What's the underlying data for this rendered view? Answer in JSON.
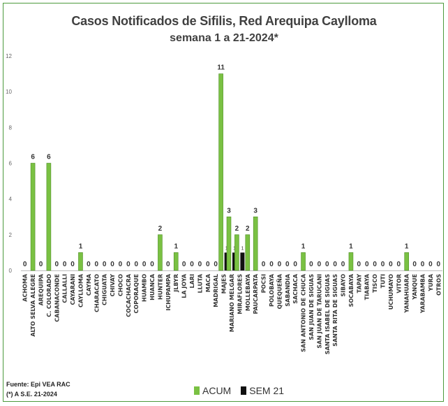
{
  "chart_data": {
    "type": "bar",
    "title": "Casos Notificados de Sifilis, Red Arequipa Caylloma",
    "subtitle": "semana 1 a 21-2024*",
    "ylim": [
      0,
      12
    ],
    "yticks": [
      0,
      2,
      4,
      6,
      8,
      10,
      12
    ],
    "grid": false,
    "legend_position": "bottom",
    "categories": [
      "ACHOMA",
      "ALTO SELVA ALEGRE",
      "AREQUIPA",
      "C. COLORADO",
      "CABANACONDE",
      "CALLALLI",
      "CAYARANI",
      "CAYLLOMA",
      "CAYMA",
      "CHARACATO",
      "CHIGUATA",
      "CHIVAY",
      "CHOCO",
      "COCACHACRA",
      "COPORAQUE",
      "HUAMBO",
      "HUANCA",
      "HUNTER",
      "ICHUPAMPA",
      "JLBYR",
      "LA JOYA",
      "LARI",
      "LLUTA",
      "MACA",
      "MADRIGAL",
      "MAJES",
      "MARIANO MELGAR",
      "MIRAFLORES",
      "MOLLEBAYA",
      "PAUCARPATA",
      "POCSI",
      "POLOBAYA",
      "QUEQUEÑA",
      "SABANDIA",
      "SACHACA",
      "SAN ANTONIO DE CHUCA",
      "SAN JUAN DE SIGUAS",
      "SAN JUAN DE TARUCANI",
      "SANTA ISABEL DE SIGUAS",
      "SANTA RITA DE SIGUAS",
      "SIBAYO",
      "SOCABAYA",
      "TAPAY",
      "TIABAYA",
      "TISCO",
      "TUTI",
      "UCHUMAYO",
      "VITOR",
      "YANAHUARA",
      "YANQUE",
      "YARABAMBA",
      "YURA",
      "OTROS"
    ],
    "series": [
      {
        "name": "ACUM",
        "color": "#7ac143",
        "values": [
          0,
          6,
          0,
          6,
          0,
          0,
          0,
          1,
          0,
          0,
          0,
          0,
          0,
          0,
          0,
          0,
          0,
          2,
          0,
          1,
          0,
          0,
          0,
          0,
          0,
          11,
          3,
          2,
          2,
          3,
          0,
          0,
          0,
          0,
          0,
          1,
          0,
          0,
          0,
          0,
          0,
          1,
          0,
          0,
          0,
          0,
          0,
          0,
          1,
          0,
          0,
          0,
          0
        ]
      },
      {
        "name": "SEM 21",
        "color": "#111111",
        "values": [
          null,
          null,
          null,
          null,
          null,
          null,
          null,
          null,
          null,
          null,
          null,
          null,
          null,
          null,
          null,
          null,
          null,
          null,
          null,
          null,
          null,
          null,
          null,
          null,
          null,
          1,
          1,
          1,
          null,
          null,
          null,
          null,
          null,
          null,
          null,
          null,
          null,
          null,
          null,
          null,
          null,
          null,
          null,
          null,
          null,
          null,
          null,
          null,
          null,
          null,
          null,
          null,
          null
        ]
      }
    ]
  },
  "footer": {
    "source": "Fuente: Epi VEA RAC",
    "note": "(*) A S.E. 21-2024"
  }
}
